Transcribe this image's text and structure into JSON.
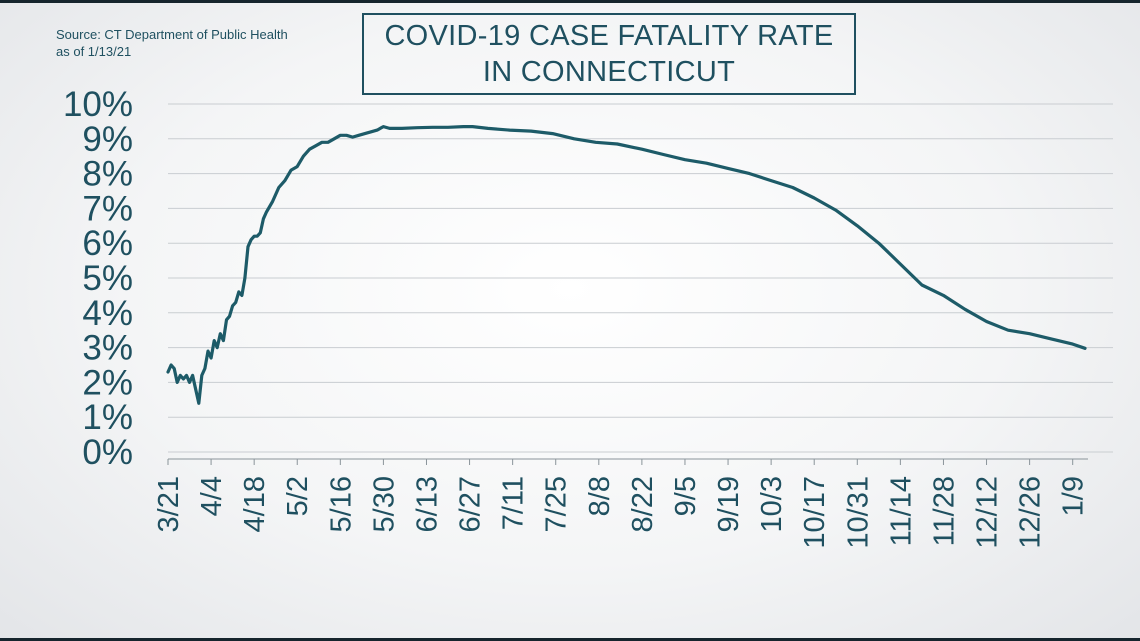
{
  "source": {
    "line1": "Source: CT Department of Public Health",
    "line2": "as of 1/13/21"
  },
  "title": {
    "line1": "COVID-19 CASE FATALITY RATE",
    "line2": "IN CONNECTICUT"
  },
  "colors": {
    "line": "#1d5b68",
    "text": "#1f5060",
    "grid": "#c9cdd1"
  },
  "chart_data": {
    "type": "line",
    "title": "COVID-19 CASE FATALITY RATE IN CONNECTICUT",
    "xlabel": "",
    "ylabel": "",
    "ylim": [
      0,
      10
    ],
    "y_ticks": [
      "0%",
      "1%",
      "2%",
      "3%",
      "4%",
      "5%",
      "6%",
      "7%",
      "8%",
      "9%",
      "10%"
    ],
    "x_ticks": [
      "3/21",
      "4/4",
      "4/18",
      "5/2",
      "5/16",
      "5/30",
      "6/13",
      "6/27",
      "7/11",
      "7/25",
      "8/8",
      "8/22",
      "9/5",
      "9/19",
      "10/3",
      "10/17",
      "10/31",
      "11/14",
      "11/28",
      "12/12",
      "12/26",
      "1/9"
    ],
    "x_range": [
      "2020-03-21",
      "2021-01-13"
    ],
    "grid": true,
    "series": [
      {
        "points": [
          [
            "2020-03-21",
            2.3
          ],
          [
            "2020-03-22",
            2.5
          ],
          [
            "2020-03-23",
            2.4
          ],
          [
            "2020-03-24",
            2.0
          ],
          [
            "2020-03-25",
            2.2
          ],
          [
            "2020-03-26",
            2.1
          ],
          [
            "2020-03-27",
            2.2
          ],
          [
            "2020-03-28",
            2.0
          ],
          [
            "2020-03-29",
            2.2
          ],
          [
            "2020-03-30",
            1.8
          ],
          [
            "2020-03-31",
            1.4
          ],
          [
            "2020-04-01",
            2.2
          ],
          [
            "2020-04-02",
            2.4
          ],
          [
            "2020-04-03",
            2.9
          ],
          [
            "2020-04-04",
            2.7
          ],
          [
            "2020-04-05",
            3.2
          ],
          [
            "2020-04-06",
            3.0
          ],
          [
            "2020-04-07",
            3.4
          ],
          [
            "2020-04-08",
            3.2
          ],
          [
            "2020-04-09",
            3.8
          ],
          [
            "2020-04-10",
            3.9
          ],
          [
            "2020-04-11",
            4.2
          ],
          [
            "2020-04-12",
            4.3
          ],
          [
            "2020-04-13",
            4.6
          ],
          [
            "2020-04-14",
            4.5
          ],
          [
            "2020-04-15",
            5.0
          ],
          [
            "2020-04-16",
            5.9
          ],
          [
            "2020-04-17",
            6.1
          ],
          [
            "2020-04-18",
            6.2
          ],
          [
            "2020-04-19",
            6.2
          ],
          [
            "2020-04-20",
            6.3
          ],
          [
            "2020-04-21",
            6.7
          ],
          [
            "2020-04-22",
            6.9
          ],
          [
            "2020-04-24",
            7.2
          ],
          [
            "2020-04-26",
            7.6
          ],
          [
            "2020-04-28",
            7.8
          ],
          [
            "2020-04-30",
            8.1
          ],
          [
            "2020-05-02",
            8.2
          ],
          [
            "2020-05-04",
            8.5
          ],
          [
            "2020-05-06",
            8.7
          ],
          [
            "2020-05-08",
            8.8
          ],
          [
            "2020-05-10",
            8.9
          ],
          [
            "2020-05-12",
            8.9
          ],
          [
            "2020-05-14",
            9.0
          ],
          [
            "2020-05-16",
            9.1
          ],
          [
            "2020-05-18",
            9.1
          ],
          [
            "2020-05-20",
            9.05
          ],
          [
            "2020-05-22",
            9.1
          ],
          [
            "2020-05-24",
            9.15
          ],
          [
            "2020-05-26",
            9.2
          ],
          [
            "2020-05-28",
            9.25
          ],
          [
            "2020-05-30",
            9.35
          ],
          [
            "2020-06-01",
            9.3
          ],
          [
            "2020-06-05",
            9.3
          ],
          [
            "2020-06-10",
            9.32
          ],
          [
            "2020-06-15",
            9.33
          ],
          [
            "2020-06-20",
            9.33
          ],
          [
            "2020-06-25",
            9.35
          ],
          [
            "2020-06-28",
            9.35
          ],
          [
            "2020-07-03",
            9.3
          ],
          [
            "2020-07-10",
            9.25
          ],
          [
            "2020-07-17",
            9.22
          ],
          [
            "2020-07-24",
            9.15
          ],
          [
            "2020-07-31",
            9.0
          ],
          [
            "2020-08-07",
            8.9
          ],
          [
            "2020-08-14",
            8.85
          ],
          [
            "2020-08-22",
            8.7
          ],
          [
            "2020-08-29",
            8.55
          ],
          [
            "2020-09-05",
            8.4
          ],
          [
            "2020-09-12",
            8.3
          ],
          [
            "2020-09-19",
            8.15
          ],
          [
            "2020-09-26",
            8.0
          ],
          [
            "2020-10-03",
            7.8
          ],
          [
            "2020-10-10",
            7.6
          ],
          [
            "2020-10-17",
            7.3
          ],
          [
            "2020-10-24",
            6.95
          ],
          [
            "2020-10-31",
            6.5
          ],
          [
            "2020-11-07",
            6.0
          ],
          [
            "2020-11-14",
            5.4
          ],
          [
            "2020-11-21",
            4.8
          ],
          [
            "2020-11-28",
            4.5
          ],
          [
            "2020-12-05",
            4.1
          ],
          [
            "2020-12-12",
            3.75
          ],
          [
            "2020-12-19",
            3.5
          ],
          [
            "2020-12-26",
            3.4
          ],
          [
            "2021-01-02",
            3.25
          ],
          [
            "2021-01-09",
            3.1
          ],
          [
            "2021-01-13",
            2.98
          ]
        ]
      }
    ]
  }
}
